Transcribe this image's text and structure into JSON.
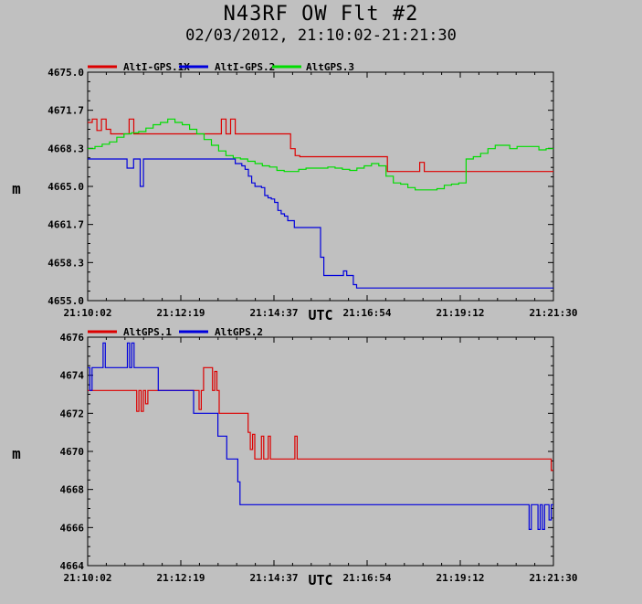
{
  "title": "N43RF OW Flt #2",
  "subtitle": "02/03/2012, 21:10:02-21:21:30",
  "chart_data": [
    {
      "type": "line",
      "ylabel": "m",
      "xlabel": "UTC",
      "ylim": [
        4655.0,
        4675.0
      ],
      "yticks": [
        "4655.0",
        "4658.3",
        "4661.7",
        "4665.0",
        "4668.3",
        "4671.7",
        "4675.0"
      ],
      "xticks": [
        "21:10:02",
        "21:12:19",
        "21:14:37",
        "21:16:54",
        "21:19:12",
        "21:21:30"
      ],
      "legend": "top-left",
      "series": [
        {
          "name": "AltI-GPS.1X",
          "color": "#dd0000",
          "values": [
            4670.6,
            4670.9,
            4669.9,
            4670.9,
            4670.0,
            4669.6,
            4669.6,
            4669.6,
            4669.6,
            4670.9,
            4669.6,
            4669.6,
            4669.6,
            4669.6,
            4669.6,
            4669.6,
            4669.6,
            4669.6,
            4669.6,
            4669.6,
            4669.6,
            4669.6,
            4669.6,
            4669.6,
            4669.6,
            4669.6,
            4669.6,
            4669.6,
            4669.6,
            4670.9,
            4669.6,
            4670.9,
            4669.6,
            4669.6,
            4669.6,
            4669.6,
            4669.6,
            4669.6,
            4669.6,
            4669.6,
            4669.6,
            4669.6,
            4669.6,
            4669.6,
            4668.3,
            4667.7,
            4667.6,
            4667.6,
            4667.6,
            4667.6,
            4667.6,
            4667.6,
            4667.6,
            4667.6,
            4667.6,
            4667.6,
            4667.6,
            4667.6,
            4667.6,
            4667.6,
            4667.6,
            4667.6,
            4667.6,
            4667.6,
            4667.6,
            4666.3,
            4666.3,
            4666.3,
            4666.3,
            4666.3,
            4666.3,
            4666.3,
            4667.1,
            4666.3,
            4666.3,
            4666.3,
            4666.3,
            4666.3,
            4666.3,
            4666.3,
            4666.3,
            4666.3,
            4666.3,
            4666.3,
            4666.3,
            4666.3,
            4666.3,
            4666.3,
            4666.3,
            4666.3,
            4666.3,
            4666.3,
            4666.3,
            4666.3,
            4666.3,
            4666.3,
            4666.3,
            4666.3,
            4666.3,
            4666.3,
            4666.3
          ]
        },
        {
          "name": "AltI-GPS.2",
          "color": "#0000dd",
          "values": [
            4667.4,
            4667.4,
            4667.4,
            4667.4,
            4667.4,
            4667.4,
            4667.4,
            4667.4,
            4667.4,
            4667.4,
            4667.4,
            4667.4,
            4666.6,
            4666.6,
            4667.4,
            4667.4,
            4665.0,
            4667.4,
            4667.4,
            4667.4,
            4667.4,
            4667.4,
            4667.4,
            4667.4,
            4667.4,
            4667.4,
            4667.4,
            4667.4,
            4667.4,
            4667.4,
            4667.4,
            4667.4,
            4667.4,
            4667.4,
            4667.4,
            4667.4,
            4667.4,
            4667.4,
            4667.4,
            4667.4,
            4667.4,
            4667.4,
            4667.4,
            4667.4,
            4667.4,
            4667.0,
            4667.0,
            4666.8,
            4666.5,
            4665.9,
            4665.3,
            4665.0,
            4665.0,
            4664.9,
            4664.2,
            4664.0,
            4663.9,
            4663.6,
            4662.9,
            4662.6,
            4662.4,
            4662.0,
            4662.0,
            4661.4,
            4661.4,
            4661.4,
            4661.4,
            4661.4,
            4661.4,
            4661.4,
            4661.4,
            4658.8,
            4657.2,
            4657.2,
            4657.2,
            4657.2,
            4657.2,
            4657.2,
            4657.6,
            4657.2,
            4657.2,
            4656.4,
            4656.1,
            4656.1,
            4656.1,
            4656.1,
            4656.1,
            4656.1,
            4656.1,
            4656.1,
            4656.1,
            4656.1,
            4656.1,
            4656.1,
            4656.1,
            4656.1,
            4656.1,
            4656.1,
            4656.1,
            4656.1,
            4656.1,
            4656.1,
            4656.1,
            4656.1,
            4656.1,
            4656.1,
            4656.1,
            4656.1,
            4656.1,
            4656.1,
            4656.1,
            4656.1,
            4656.1,
            4656.1,
            4656.1,
            4656.1,
            4656.1,
            4656.1,
            4656.1,
            4656.1,
            4656.1,
            4656.1,
            4656.1,
            4656.1,
            4656.1,
            4656.1,
            4656.1,
            4656.1,
            4656.1,
            4656.1,
            4656.1,
            4656.1,
            4656.1,
            4656.1,
            4656.1,
            4656.1,
            4656.1,
            4656.1,
            4656.1,
            4656.1,
            4656.1,
            4656.1
          ]
        },
        {
          "name": "AltGPS.3",
          "color": "#00dd00",
          "values": [
            4668.3,
            4668.5,
            4668.7,
            4668.9,
            4669.3,
            4669.6,
            4669.7,
            4669.8,
            4670.1,
            4670.4,
            4670.6,
            4670.9,
            4670.6,
            4670.4,
            4670.0,
            4669.6,
            4669.1,
            4668.6,
            4668.1,
            4667.7,
            4667.5,
            4667.4,
            4667.2,
            4667.0,
            4666.8,
            4666.7,
            4666.4,
            4666.3,
            4666.3,
            4666.5,
            4666.6,
            4666.6,
            4666.6,
            4666.7,
            4666.6,
            4666.5,
            4666.4,
            4666.6,
            4666.8,
            4667.0,
            4666.8,
            4665.9,
            4665.3,
            4665.2,
            4664.9,
            4664.7,
            4664.7,
            4664.7,
            4664.8,
            4665.1,
            4665.2,
            4665.3,
            4667.4,
            4667.6,
            4667.9,
            4668.3,
            4668.6,
            4668.6,
            4668.3,
            4668.5,
            4668.5,
            4668.5,
            4668.2,
            4668.3
          ]
        }
      ]
    },
    {
      "type": "line",
      "ylabel": "m",
      "xlabel": "UTC",
      "ylim": [
        4664,
        4676
      ],
      "yticks": [
        "4664",
        "4666",
        "4668",
        "4670",
        "4672",
        "4674",
        "4676"
      ],
      "xticks": [
        "21:10:02",
        "21:12:19",
        "21:14:37",
        "21:16:54",
        "21:19:12",
        "21:21:30"
      ],
      "legend": "top-left",
      "series": [
        {
          "name": "AltGPS.1",
          "color": "#dd0000",
          "values": [
            4673.2,
            4673.2,
            4673.2,
            4673.2,
            4673.2,
            4673.2,
            4673.2,
            4673.2,
            4673.2,
            4673.2,
            4673.2,
            4673.2,
            4673.2,
            4673.2,
            4673.2,
            4673.2,
            4673.2,
            4673.2,
            4673.2,
            4673.2,
            4673.2,
            4673.2,
            4672.1,
            4673.2,
            4672.1,
            4673.2,
            4672.5,
            4673.2,
            4673.2,
            4673.2,
            4673.2,
            4673.2,
            4673.2,
            4673.2,
            4673.2,
            4673.2,
            4673.2,
            4673.2,
            4673.2,
            4673.2,
            4673.2,
            4673.2,
            4673.2,
            4673.2,
            4673.2,
            4673.2,
            4673.2,
            4673.2,
            4673.2,
            4673.2,
            4672.2,
            4673.2,
            4674.4,
            4674.4,
            4674.4,
            4674.4,
            4673.2,
            4674.2,
            4673.2,
            4672.0,
            4672.0,
            4672.0,
            4672.0,
            4672.0,
            4672.0,
            4672.0,
            4672.0,
            4672.0,
            4672.0,
            4672.0,
            4672.0,
            4672.0,
            4671.0,
            4670.1,
            4670.9,
            4669.6,
            4669.6,
            4669.6,
            4670.8,
            4669.6,
            4669.6,
            4670.8,
            4669.6,
            4669.6,
            4669.6,
            4669.6,
            4669.6,
            4669.6,
            4669.6,
            4669.6,
            4669.6,
            4669.6,
            4669.6,
            4670.8,
            4669.6,
            4669.6,
            4669.6,
            4669.6,
            4669.6,
            4669.6,
            4669.6,
            4669.6,
            4669.6,
            4669.6,
            4669.6,
            4669.6,
            4669.6,
            4669.6,
            4669.6,
            4669.6,
            4669.6,
            4669.6,
            4669.6,
            4669.6,
            4669.6,
            4669.6,
            4669.6,
            4669.6,
            4669.6,
            4669.6,
            4669.6,
            4669.6,
            4669.6,
            4669.6,
            4669.6,
            4669.6,
            4669.6,
            4669.6,
            4669.6,
            4669.6,
            4669.6,
            4669.6,
            4669.6,
            4669.6,
            4669.6,
            4669.6,
            4669.6,
            4669.6,
            4669.6,
            4669.6,
            4669.6,
            4669.6,
            4669.6,
            4669.6,
            4669.6,
            4669.6,
            4669.6,
            4669.6,
            4669.6,
            4669.6,
            4669.6,
            4669.6,
            4669.6,
            4669.6,
            4669.6,
            4669.6,
            4669.6,
            4669.6,
            4669.6,
            4669.6,
            4669.6,
            4669.6,
            4669.6,
            4669.6,
            4669.6,
            4669.6,
            4669.6,
            4669.6,
            4669.6,
            4669.6,
            4669.6,
            4669.6,
            4669.6,
            4669.6,
            4669.6,
            4669.6,
            4669.6,
            4669.6,
            4669.6,
            4669.6,
            4669.6,
            4669.6,
            4669.6,
            4669.6,
            4669.6,
            4669.6,
            4669.6,
            4669.6,
            4669.6,
            4669.6,
            4669.6,
            4669.6,
            4669.6,
            4669.6,
            4669.6,
            4669.6,
            4669.6,
            4669.6,
            4669.6,
            4669.6,
            4669.6,
            4669.6,
            4669.6,
            4669.6,
            4669.6,
            4669.6,
            4669.6,
            4669.6,
            4669.0
          ]
        },
        {
          "name": "AltGPS.2",
          "color": "#0000dd",
          "values": [
            4674.4,
            4673.2,
            4674.4,
            4674.4,
            4674.4,
            4674.4,
            4674.4,
            4675.7,
            4674.4,
            4674.4,
            4674.4,
            4674.4,
            4674.4,
            4674.4,
            4674.4,
            4674.4,
            4674.4,
            4674.4,
            4675.7,
            4674.4,
            4675.7,
            4674.4,
            4674.4,
            4674.4,
            4674.4,
            4674.4,
            4674.4,
            4674.4,
            4674.4,
            4674.4,
            4674.4,
            4674.4,
            4673.2,
            4673.2,
            4673.2,
            4673.2,
            4673.2,
            4673.2,
            4673.2,
            4673.2,
            4673.2,
            4673.2,
            4673.2,
            4673.2,
            4673.2,
            4673.2,
            4673.2,
            4673.2,
            4672.0,
            4672.0,
            4672.0,
            4672.0,
            4672.0,
            4672.0,
            4672.0,
            4672.0,
            4672.0,
            4672.0,
            4672.0,
            4670.8,
            4670.8,
            4670.8,
            4670.8,
            4669.6,
            4669.6,
            4669.6,
            4669.6,
            4669.6,
            4668.4,
            4667.2,
            4667.2,
            4667.2,
            4667.2,
            4667.2,
            4667.2,
            4667.2,
            4667.2,
            4667.2,
            4667.2,
            4667.2,
            4667.2,
            4667.2,
            4667.2,
            4667.2,
            4667.2,
            4667.2,
            4667.2,
            4667.2,
            4667.2,
            4667.2,
            4667.2,
            4667.2,
            4667.2,
            4667.2,
            4667.2,
            4667.2,
            4667.2,
            4667.2,
            4667.2,
            4667.2,
            4667.2,
            4667.2,
            4667.2,
            4667.2,
            4667.2,
            4667.2,
            4667.2,
            4667.2,
            4667.2,
            4667.2,
            4667.2,
            4667.2,
            4667.2,
            4667.2,
            4667.2,
            4667.2,
            4667.2,
            4667.2,
            4667.2,
            4667.2,
            4667.2,
            4667.2,
            4667.2,
            4667.2,
            4667.2,
            4667.2,
            4667.2,
            4667.2,
            4667.2,
            4667.2,
            4667.2,
            4667.2,
            4667.2,
            4667.2,
            4667.2,
            4667.2,
            4667.2,
            4667.2,
            4667.2,
            4667.2,
            4667.2,
            4667.2,
            4667.2,
            4667.2,
            4667.2,
            4667.2,
            4667.2,
            4667.2,
            4667.2,
            4667.2,
            4667.2,
            4667.2,
            4667.2,
            4667.2,
            4667.2,
            4667.2,
            4667.2,
            4667.2,
            4667.2,
            4667.2,
            4667.2,
            4667.2,
            4667.2,
            4667.2,
            4667.2,
            4667.2,
            4667.2,
            4667.2,
            4667.2,
            4667.2,
            4667.2,
            4667.2,
            4667.2,
            4667.2,
            4667.2,
            4667.2,
            4667.2,
            4667.2,
            4667.2,
            4667.2,
            4667.2,
            4667.2,
            4667.2,
            4667.2,
            4667.2,
            4667.2,
            4667.2,
            4667.2,
            4667.2,
            4667.2,
            4667.2,
            4667.2,
            4667.2,
            4667.2,
            4667.2,
            4667.2,
            4667.2,
            4667.2,
            4667.2,
            4667.2,
            4665.9,
            4667.2,
            4667.2,
            4667.2,
            4665.9,
            4667.2,
            4665.9,
            4667.2,
            4667.2,
            4666.4,
            4667.2
          ]
        }
      ]
    }
  ]
}
